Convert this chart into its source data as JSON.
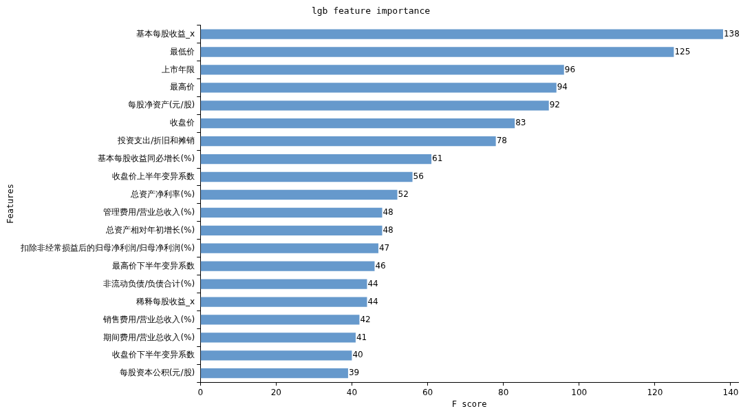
{
  "chart_data": {
    "type": "bar",
    "orientation": "horizontal",
    "title": "lgb feature importance",
    "xlabel": "F score",
    "ylabel": "Features",
    "categories": [
      "基本每股收益_x",
      "最低价",
      "上市年限",
      "最高价",
      "每股净资产(元/股)",
      "收盘价",
      "投资支出/折旧和摊销",
      "基本每股收益同必增长(%)",
      "收盘价上半年变异系数",
      "总资产净利率(%)",
      "管理费用/营业总收入(%)",
      "总资产相对年初增长(%)",
      "扣除非经常损益后的归母净利润/归母净利润(%)",
      "最高价下半年变异系数",
      "非流动负债/负债合计(%)",
      "稀释每股收益_x",
      "销售费用/营业总收入(%)",
      "期间费用/营业总收入(%)",
      "收盘价下半年变异系数",
      "每股资本公积(元/股)"
    ],
    "values": [
      138,
      125,
      96,
      94,
      92,
      83,
      78,
      61,
      56,
      52,
      48,
      48,
      47,
      46,
      44,
      44,
      42,
      41,
      40,
      39
    ],
    "color": "#6699cc",
    "xlim": [
      0,
      142
    ],
    "xticks": [
      0,
      20,
      40,
      60,
      80,
      100,
      120,
      140
    ],
    "grid": false,
    "data_labels": true
  }
}
